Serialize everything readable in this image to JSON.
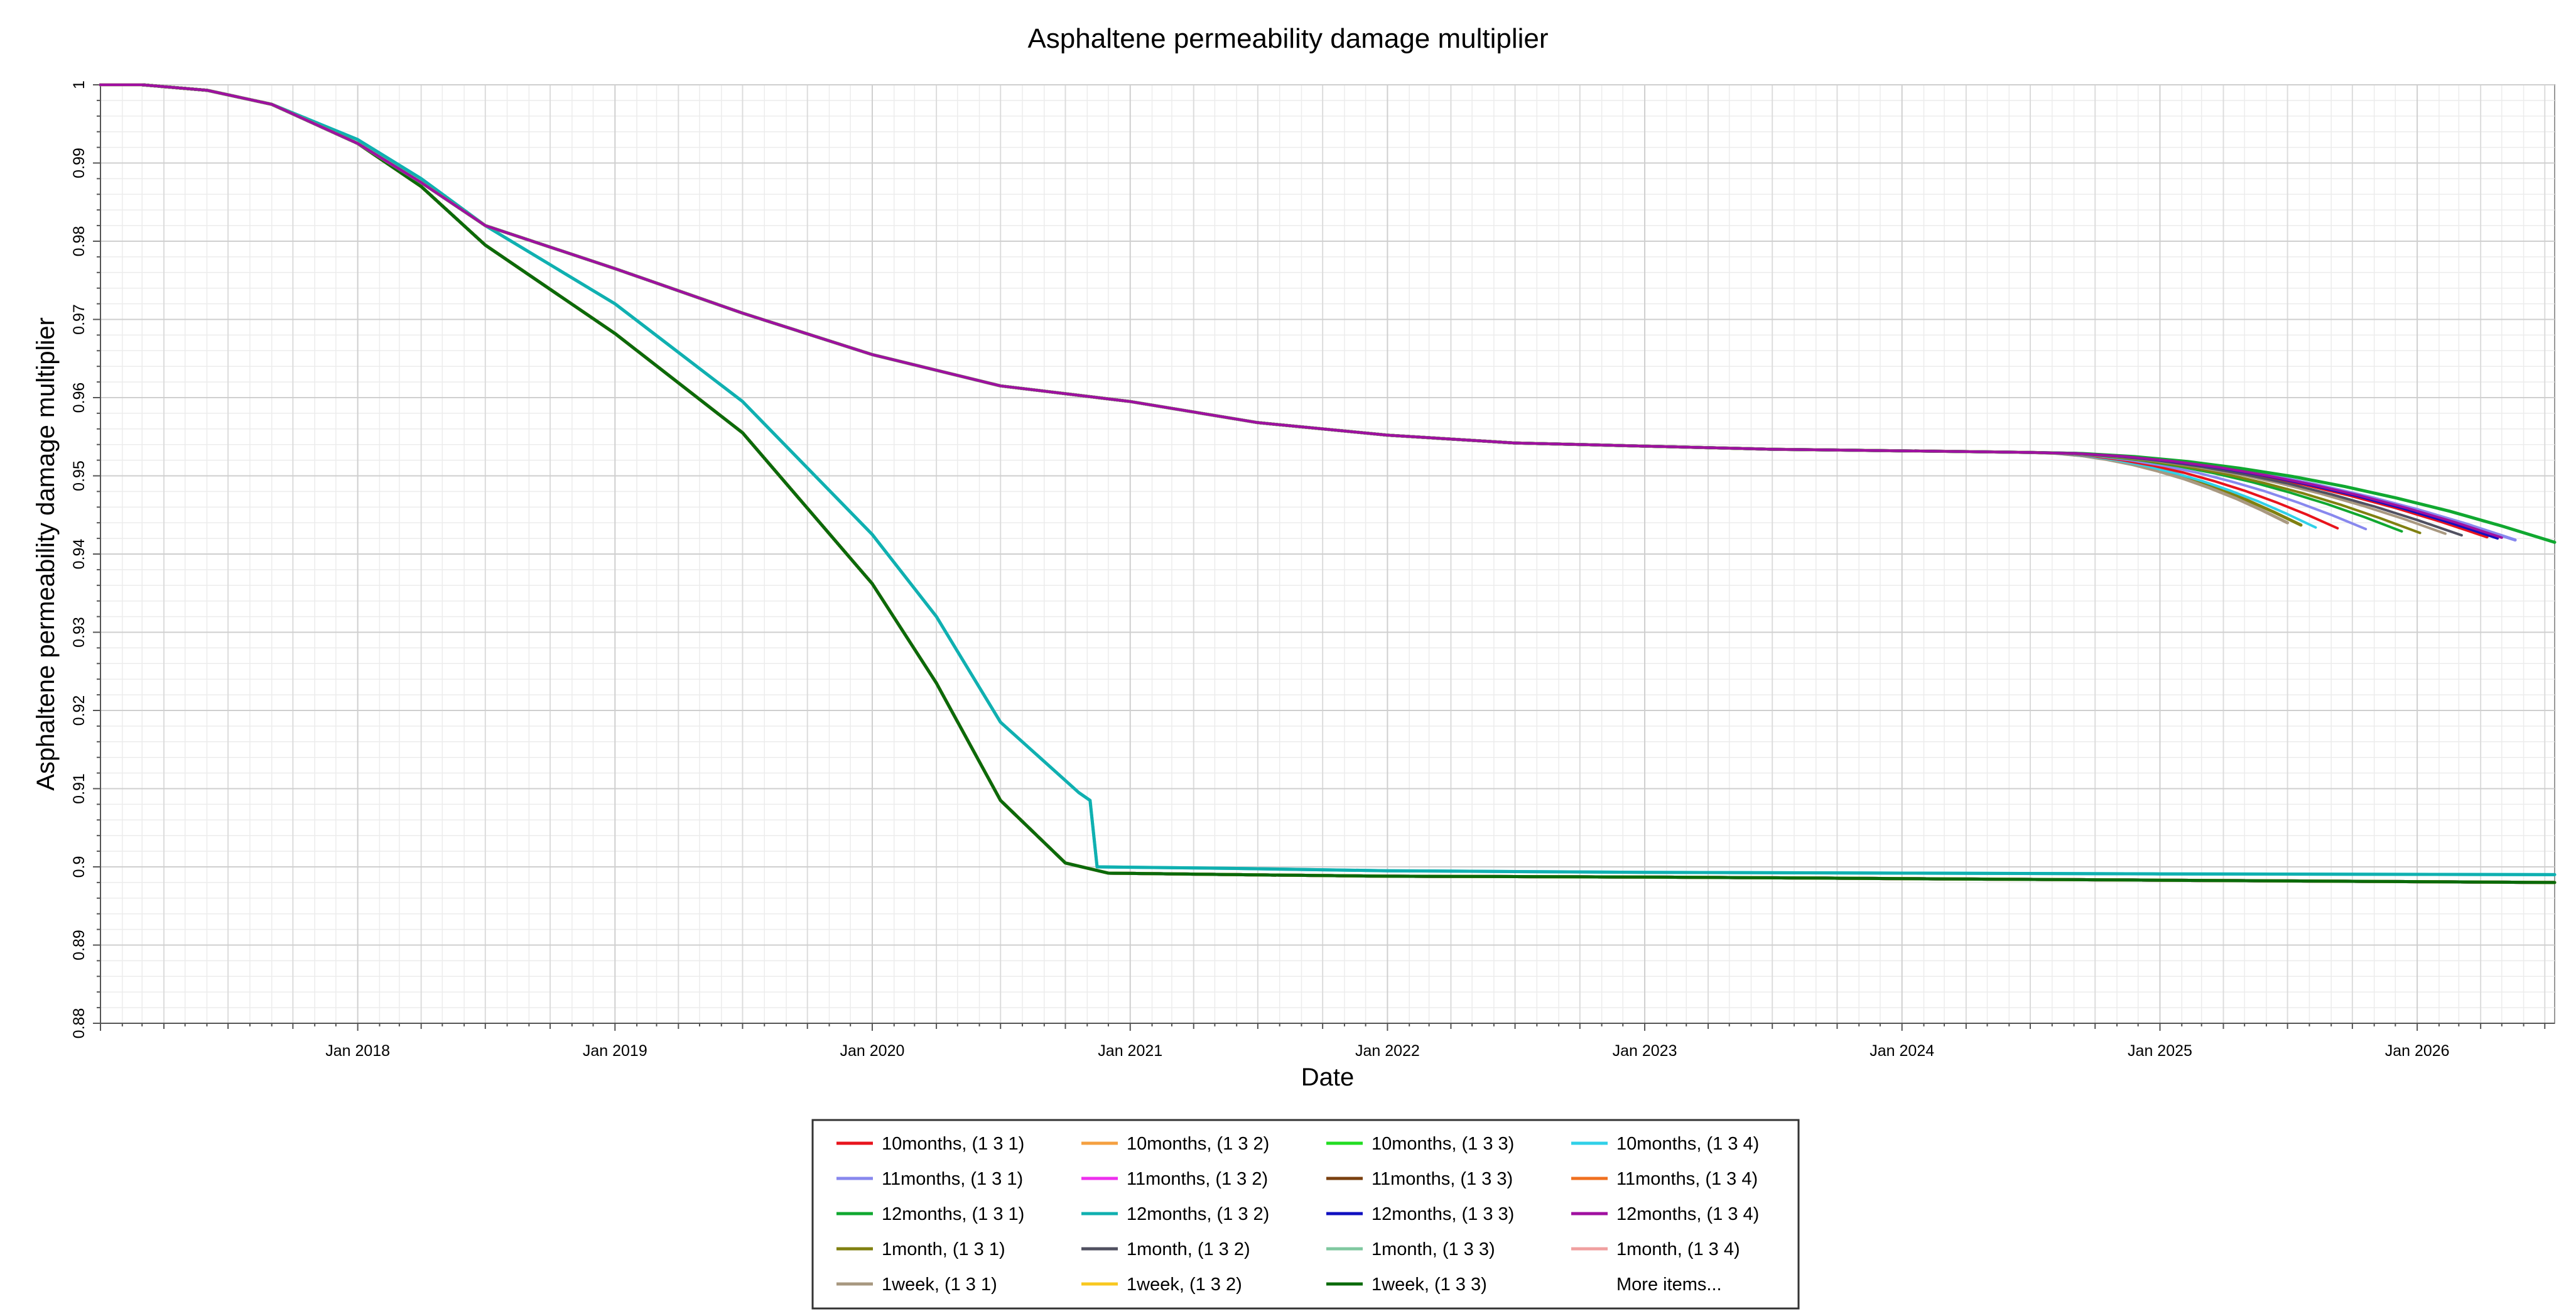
{
  "chart_data": {
    "type": "line",
    "title": "Asphaltene permeability damage multiplier",
    "xlabel": "Date",
    "ylabel": "Asphaltene permeability damage multiplier",
    "x_range": [
      "2017-01-01",
      "2026-07-15"
    ],
    "ylim": [
      0.88,
      1.0
    ],
    "y_ticks": [
      "0.88",
      "0.89",
      "0.9",
      "0.91",
      "0.92",
      "0.93",
      "0.94",
      "0.95",
      "0.96",
      "0.97",
      "0.98",
      "0.99",
      "1"
    ],
    "x_ticks": [
      {
        "date": "2018-01-01",
        "label": "Jan 2018"
      },
      {
        "date": "2019-01-01",
        "label": "Jan 2019"
      },
      {
        "date": "2020-01-01",
        "label": "Jan 2020"
      },
      {
        "date": "2021-01-01",
        "label": "Jan 2021"
      },
      {
        "date": "2022-01-01",
        "label": "Jan 2022"
      },
      {
        "date": "2023-01-01",
        "label": "Jan 2023"
      },
      {
        "date": "2024-01-01",
        "label": "Jan 2024"
      },
      {
        "date": "2025-01-01",
        "label": "Jan 2025"
      },
      {
        "date": "2026-01-01",
        "label": "Jan 2026"
      }
    ],
    "grid": true,
    "legend_position": "bottom",
    "legend_more_label": "More items...",
    "series": [
      {
        "name": "10months, (1 3 1)",
        "color": "#e8141c",
        "group": "A",
        "end": [
          "2026-04-10",
          0.9422
        ]
      },
      {
        "name": "10months, (1 3 2)",
        "color": "#f5a040",
        "group": "B"
      },
      {
        "name": "10months, (1 3 3)",
        "color": "#22dd22",
        "group": "B"
      },
      {
        "name": "10months, (1 3 4)",
        "color": "#30d0e8",
        "group": "C"
      },
      {
        "name": "11months, (1 3 1)",
        "color": "#8888ee",
        "group": "A",
        "end": [
          "2026-05-20",
          0.9418
        ]
      },
      {
        "name": "11months, (1 3 2)",
        "color": "#ee30ee",
        "group": "B"
      },
      {
        "name": "11months, (1 3 3)",
        "color": "#7a4010",
        "group": "B"
      },
      {
        "name": "11months, (1 3 4)",
        "color": "#f07020",
        "group": "B"
      },
      {
        "name": "12months, (1 3 1)",
        "color": "#10a830",
        "group": "A",
        "end": [
          "2026-07-15",
          0.9415
        ]
      },
      {
        "name": "12months, (1 3 2)",
        "color": "#10b0b0",
        "group": "C"
      },
      {
        "name": "12months, (1 3 3)",
        "color": "#1010c0",
        "group": "B"
      },
      {
        "name": "12months, (1 3 4)",
        "color": "#a010a0",
        "group": "B"
      },
      {
        "name": "1month, (1 3 1)",
        "color": "#808010",
        "group": "A",
        "end": [
          "2025-07-20",
          0.9437
        ]
      },
      {
        "name": "1month, (1 3 2)",
        "color": "#505060",
        "group": "B"
      },
      {
        "name": "1month, (1 3 3)",
        "color": "#80c8a0",
        "group": "B"
      },
      {
        "name": "1month, (1 3 4)",
        "color": "#f0a0a0",
        "group": "B"
      },
      {
        "name": "1week, (1 3 1)",
        "color": "#a89880",
        "group": "A",
        "end": [
          "2025-07-01",
          0.944
        ]
      },
      {
        "name": "1week, (1 3 2)",
        "color": "#f8c820",
        "group": "B"
      },
      {
        "name": "1week, (1 3 3)",
        "color": "#0a6a0a",
        "group": "B"
      }
    ],
    "extra_curve_ends": [
      {
        "color": "#30d0e8",
        "end": [
          "2025-08-10",
          0.9434
        ]
      },
      {
        "color": "#e8141c",
        "end": [
          "2025-09-10",
          0.9433
        ]
      },
      {
        "color": "#8888ee",
        "end": [
          "2025-10-20",
          0.9432
        ]
      },
      {
        "color": "#10a830",
        "end": [
          "2025-12-10",
          0.9429
        ]
      },
      {
        "color": "#808010",
        "end": [
          "2026-01-05",
          0.9427
        ]
      },
      {
        "color": "#a89880",
        "end": [
          "2026-02-10",
          0.9426
        ]
      },
      {
        "color": "#505060",
        "end": [
          "2026-03-05",
          0.9424
        ]
      },
      {
        "color": "#1010c0",
        "end": [
          "2026-04-25",
          0.942
        ]
      },
      {
        "color": "#a010a0",
        "end": [
          "2026-05-01",
          0.9421
        ]
      }
    ],
    "group_profiles": {
      "A_common": [
        [
          "2017-01-01",
          1.0
        ],
        [
          "2017-03-01",
          1.0
        ],
        [
          "2017-06-01",
          0.9993
        ],
        [
          "2017-09-01",
          0.9975
        ],
        [
          "2018-01-01",
          0.9925
        ],
        [
          "2018-04-01",
          0.9875
        ],
        [
          "2018-07-01",
          0.982
        ],
        [
          "2019-01-01",
          0.9765
        ],
        [
          "2019-07-01",
          0.9708
        ],
        [
          "2020-01-01",
          0.9655
        ],
        [
          "2020-07-01",
          0.9615
        ],
        [
          "2021-01-01",
          0.9595
        ],
        [
          "2021-07-01",
          0.9568
        ],
        [
          "2022-01-01",
          0.9552
        ],
        [
          "2022-07-01",
          0.9542
        ],
        [
          "2023-01-01",
          0.9538
        ],
        [
          "2023-07-01",
          0.9534
        ],
        [
          "2024-01-01",
          0.9532
        ],
        [
          "2024-07-01",
          0.953
        ],
        [
          "2025-01-01",
          0.9526
        ]
      ],
      "B": [
        [
          "2017-01-01",
          1.0
        ],
        [
          "2017-03-01",
          1.0
        ],
        [
          "2017-06-01",
          0.9993
        ],
        [
          "2017-09-01",
          0.9975
        ],
        [
          "2018-01-01",
          0.9925
        ],
        [
          "2018-04-01",
          0.987
        ],
        [
          "2018-07-01",
          0.9795
        ],
        [
          "2019-01-01",
          0.9682
        ],
        [
          "2019-07-01",
          0.9555
        ],
        [
          "2020-01-01",
          0.9362
        ],
        [
          "2020-04-01",
          0.9235
        ],
        [
          "2020-07-01",
          0.9085
        ],
        [
          "2020-10-01",
          0.9005
        ],
        [
          "2020-12-01",
          0.8992
        ],
        [
          "2021-06-01",
          0.899
        ],
        [
          "2022-01-01",
          0.8988
        ],
        [
          "2023-01-01",
          0.8987
        ],
        [
          "2024-01-01",
          0.8985
        ],
        [
          "2025-01-01",
          0.8983
        ],
        [
          "2026-07-15",
          0.898
        ]
      ],
      "C": [
        [
          "2017-01-01",
          1.0
        ],
        [
          "2017-03-01",
          1.0
        ],
        [
          "2017-06-01",
          0.9993
        ],
        [
          "2017-09-01",
          0.9975
        ],
        [
          "2018-01-01",
          0.993
        ],
        [
          "2018-04-01",
          0.988
        ],
        [
          "2018-07-01",
          0.982
        ],
        [
          "2019-01-01",
          0.972
        ],
        [
          "2019-07-01",
          0.9595
        ],
        [
          "2020-01-01",
          0.9425
        ],
        [
          "2020-04-01",
          0.932
        ],
        [
          "2020-07-01",
          0.9185
        ],
        [
          "2020-10-20",
          0.9095
        ],
        [
          "2020-11-05",
          0.9085
        ],
        [
          "2020-11-15",
          0.9
        ],
        [
          "2021-06-01",
          0.8998
        ],
        [
          "2022-01-01",
          0.8995
        ],
        [
          "2023-01-01",
          0.8993
        ],
        [
          "2024-01-01",
          0.8992
        ],
        [
          "2025-01-01",
          0.8991
        ],
        [
          "2026-07-15",
          0.899
        ]
      ]
    }
  }
}
